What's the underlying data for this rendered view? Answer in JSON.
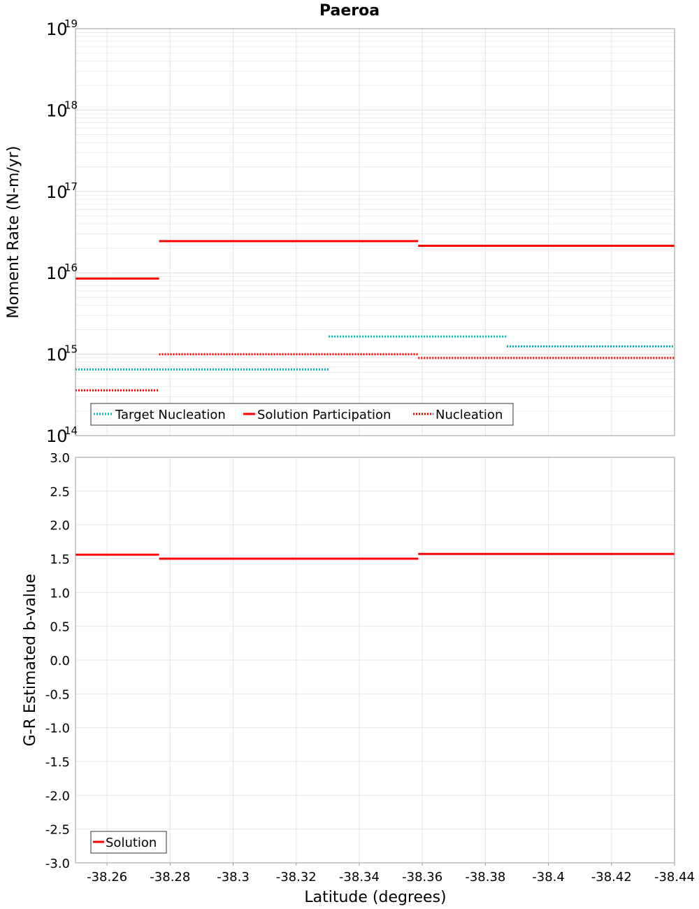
{
  "chart_data": [
    {
      "type": "line",
      "title": "Paeroa",
      "xlabel": "Latitude (degrees)",
      "ylabel": "Moment Rate (N-m/yr)",
      "yscale": "log",
      "ylim": [
        100000000000000.0,
        1e+19
      ],
      "xlim": [
        -38.25,
        -38.44
      ],
      "y_tick_base": "10",
      "y_tick_exponents": [
        "14",
        "15",
        "16",
        "17",
        "18",
        "19"
      ],
      "x_tick_labels": [
        "-38.26",
        "-38.28",
        "-38.3",
        "-38.32",
        "-38.34",
        "-38.36",
        "-38.38",
        "-38.4",
        "-38.42",
        "-38.44"
      ],
      "x_tick_values": [
        -38.26,
        -38.28,
        -38.3,
        -38.32,
        -38.34,
        -38.36,
        -38.38,
        -38.4,
        -38.42,
        -38.44
      ],
      "series": [
        {
          "name": "Target Nucleation",
          "color": "#00b4b4",
          "style": "dotted",
          "segments": [
            {
              "x": [
                -38.25,
                -38.3303
              ],
              "y": 650000000000000.0
            },
            {
              "x": [
                -38.3303,
                -38.3868
              ],
              "y": 1650000000000000.0
            },
            {
              "x": [
                -38.3868,
                -38.44
              ],
              "y": 1250000000000000.0
            }
          ]
        },
        {
          "name": "Solution Participation",
          "color": "#ff0000",
          "style": "solid",
          "segments": [
            {
              "x": [
                -38.25,
                -38.2765
              ],
              "y": 8500000000000000.0
            },
            {
              "x": [
                -38.2765,
                -38.3587
              ],
              "y": 2.45e+16
            },
            {
              "x": [
                -38.3587,
                -38.44
              ],
              "y": 2.15e+16
            }
          ]
        },
        {
          "name": "Nucleation",
          "color": "#ff0000",
          "style": "dotted",
          "segments": [
            {
              "x": [
                -38.25,
                -38.2765
              ],
              "y": 360000000000000.0
            },
            {
              "x": [
                -38.2765,
                -38.3587
              ],
              "y": 1000000000000000.0
            },
            {
              "x": [
                -38.3587,
                -38.44
              ],
              "y": 900000000000000.0
            }
          ]
        }
      ],
      "legend": "bottom-left"
    },
    {
      "type": "line",
      "title": "",
      "xlabel": "Latitude (degrees)",
      "ylabel": "G-R Estimated b-value",
      "ylim": [
        -3.0,
        3.0
      ],
      "xlim": [
        -38.25,
        -38.44
      ],
      "y_tick_labels": [
        "3.0",
        "2.5",
        "2.0",
        "1.5",
        "1.0",
        "0.5",
        "0.0",
        "-0.5",
        "-1.0",
        "-1.5",
        "-2.0",
        "-2.5",
        "-3.0"
      ],
      "y_tick_values": [
        3.0,
        2.5,
        2.0,
        1.5,
        1.0,
        0.5,
        0.0,
        -0.5,
        -1.0,
        -1.5,
        -2.0,
        -2.5,
        -3.0
      ],
      "x_tick_labels": [
        "-38.26",
        "-38.28",
        "-38.3",
        "-38.32",
        "-38.34",
        "-38.36",
        "-38.38",
        "-38.4",
        "-38.42",
        "-38.44"
      ],
      "x_tick_values": [
        -38.26,
        -38.28,
        -38.3,
        -38.32,
        -38.34,
        -38.36,
        -38.38,
        -38.4,
        -38.42,
        -38.44
      ],
      "series": [
        {
          "name": "Solution",
          "color": "#ff0000",
          "style": "solid",
          "segments": [
            {
              "x": [
                -38.25,
                -38.2765
              ],
              "y": 1.56
            },
            {
              "x": [
                -38.2765,
                -38.3587
              ],
              "y": 1.5
            },
            {
              "x": [
                -38.3587,
                -38.44
              ],
              "y": 1.57
            }
          ]
        }
      ],
      "legend": "bottom-left"
    }
  ]
}
